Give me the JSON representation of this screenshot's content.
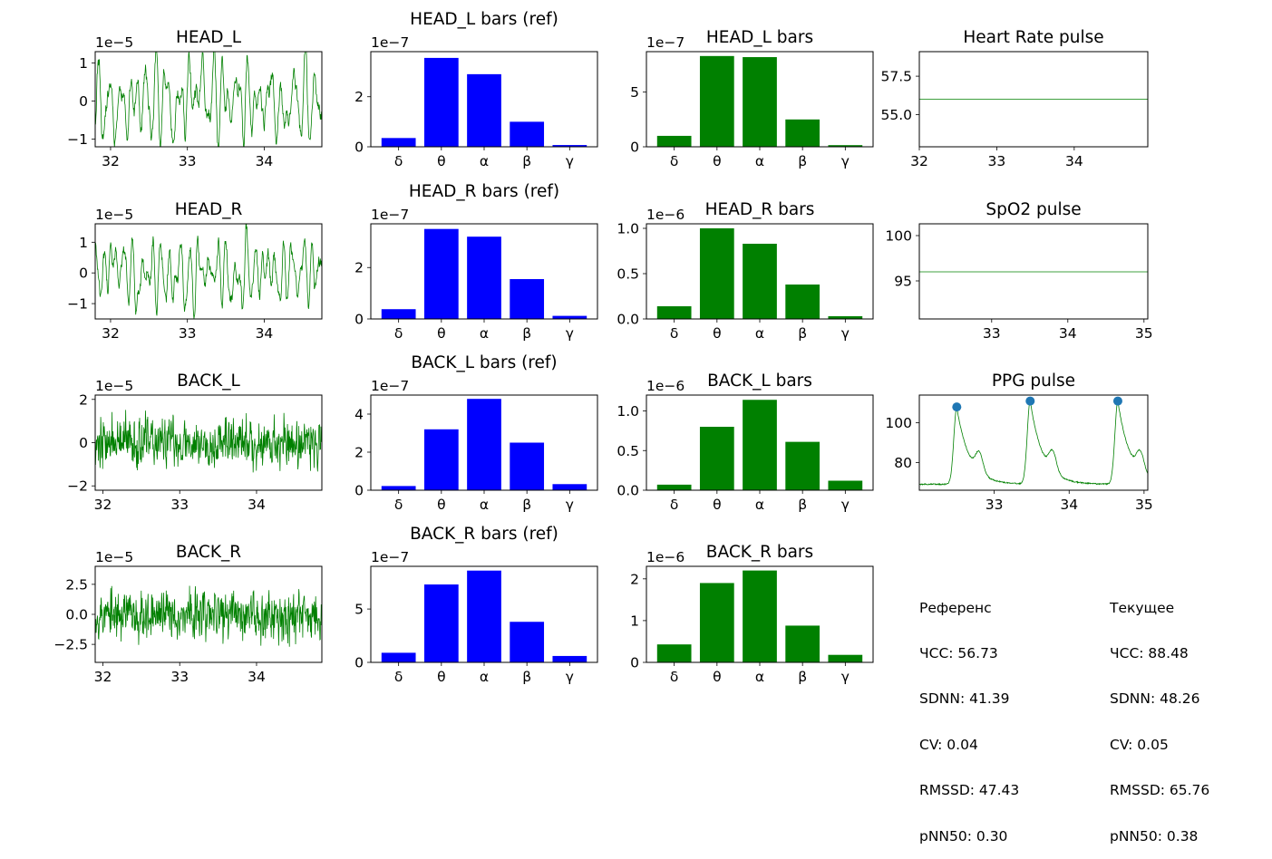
{
  "colors": {
    "signal": "#008000",
    "ref_bar": "#0000ff",
    "cur_bar": "#008000",
    "peak_marker": "#1f77b4",
    "axis": "#000000"
  },
  "chart_data": [
    {
      "id": "ts-head-l",
      "type": "line",
      "title": "HEAD_L",
      "scale_label": "1e−5",
      "xlim": [
        31.8,
        34.75
      ],
      "ylim": [
        -1.2,
        1.3
      ],
      "xticks": [
        32,
        33,
        34
      ],
      "xtick_labels": [
        "32",
        "33",
        "34"
      ],
      "yticks": [
        -1,
        0,
        1
      ],
      "ytick_labels": [
        "−1",
        "0",
        "1"
      ],
      "signal": {
        "kind": "eeg",
        "amp": 0.55,
        "seed": 11,
        "alpha": 0.55,
        "noise": 0.12
      }
    },
    {
      "id": "bars-head-l-ref",
      "type": "bar",
      "title": "HEAD_L bars (ref)",
      "scale_label": "1e−7",
      "categories": [
        "δ",
        "θ",
        "α",
        "β",
        "γ"
      ],
      "values": [
        0.35,
        3.55,
        2.9,
        1.0,
        0.07
      ],
      "ylim": [
        0,
        3.8
      ],
      "yticks": [
        0,
        2
      ],
      "ytick_labels": [
        "0",
        "2"
      ],
      "color_key": "ref_bar"
    },
    {
      "id": "bars-head-l",
      "type": "bar",
      "title": "HEAD_L bars",
      "scale_label": "1e−7",
      "categories": [
        "δ",
        "θ",
        "α",
        "β",
        "γ"
      ],
      "values": [
        1.0,
        8.3,
        8.2,
        2.5,
        0.15
      ],
      "ylim": [
        0,
        8.7
      ],
      "yticks": [
        0,
        5
      ],
      "ytick_labels": [
        "0",
        "5"
      ],
      "color_key": "cur_bar"
    },
    {
      "id": "hr-pulse",
      "type": "line",
      "title": "Heart Rate pulse",
      "scale_label": "",
      "xlim": [
        32,
        34.95
      ],
      "ylim": [
        52.9,
        59.1
      ],
      "xticks": [
        32,
        33,
        34
      ],
      "xtick_labels": [
        "32",
        "33",
        "34"
      ],
      "yticks": [
        55.0,
        57.5
      ],
      "ytick_labels": [
        "55.0",
        "57.5"
      ],
      "signal": {
        "kind": "const",
        "value": 56.0
      }
    },
    {
      "id": "ts-head-r",
      "type": "line",
      "title": "HEAD_R",
      "scale_label": "1e−5",
      "xlim": [
        31.8,
        34.75
      ],
      "ylim": [
        -1.5,
        1.6
      ],
      "xticks": [
        32,
        33,
        34
      ],
      "xtick_labels": [
        "32",
        "33",
        "34"
      ],
      "yticks": [
        -1,
        0,
        1
      ],
      "ytick_labels": [
        "−1",
        "0",
        "1"
      ],
      "signal": {
        "kind": "eeg",
        "amp": 0.62,
        "seed": 23,
        "alpha": 0.5,
        "noise": 0.18
      }
    },
    {
      "id": "bars-head-r-ref",
      "type": "bar",
      "title": "HEAD_R bars (ref)",
      "scale_label": "1e−7",
      "categories": [
        "δ",
        "θ",
        "α",
        "β",
        "γ"
      ],
      "values": [
        0.38,
        3.5,
        3.2,
        1.55,
        0.12
      ],
      "ylim": [
        0,
        3.7
      ],
      "yticks": [
        0,
        2
      ],
      "ytick_labels": [
        "0",
        "2"
      ],
      "color_key": "ref_bar"
    },
    {
      "id": "bars-head-r",
      "type": "bar",
      "title": "HEAD_R bars",
      "scale_label": "1e−6",
      "categories": [
        "δ",
        "θ",
        "α",
        "β",
        "γ"
      ],
      "values": [
        0.14,
        1.0,
        0.83,
        0.38,
        0.03
      ],
      "ylim": [
        0,
        1.05
      ],
      "yticks": [
        0,
        0.5,
        1.0
      ],
      "ytick_labels": [
        "0.0",
        "0.5",
        "1.0"
      ],
      "color_key": "cur_bar"
    },
    {
      "id": "spo2-pulse",
      "type": "line",
      "title": "SpO2 pulse",
      "scale_label": "",
      "xlim": [
        32.05,
        35.05
      ],
      "ylim": [
        90.8,
        101.3
      ],
      "xticks": [
        33,
        34,
        35
      ],
      "xtick_labels": [
        "33",
        "34",
        "35"
      ],
      "yticks": [
        95,
        100
      ],
      "ytick_labels": [
        "95",
        "100"
      ],
      "signal": {
        "kind": "const",
        "value": 96.0
      }
    },
    {
      "id": "ts-back-l",
      "type": "line",
      "title": "BACK_L",
      "scale_label": "1e−5",
      "xlim": [
        31.9,
        34.85
      ],
      "ylim": [
        -2.2,
        2.2
      ],
      "xticks": [
        32,
        33,
        34
      ],
      "xtick_labels": [
        "32",
        "33",
        "34"
      ],
      "yticks": [
        -2,
        0,
        2
      ],
      "ytick_labels": [
        "−2",
        "0",
        "2"
      ],
      "signal": {
        "kind": "noise",
        "amp": 0.7,
        "seed": 37
      }
    },
    {
      "id": "bars-back-l-ref",
      "type": "bar",
      "title": "BACK_L bars (ref)",
      "scale_label": "1e−7",
      "categories": [
        "δ",
        "θ",
        "α",
        "β",
        "γ"
      ],
      "values": [
        0.22,
        3.2,
        4.8,
        2.5,
        0.32
      ],
      "ylim": [
        0,
        5.0
      ],
      "yticks": [
        0,
        2,
        4
      ],
      "ytick_labels": [
        "0",
        "2",
        "4"
      ],
      "color_key": "ref_bar"
    },
    {
      "id": "bars-back-l",
      "type": "bar",
      "title": "BACK_L bars",
      "scale_label": "1e−6",
      "categories": [
        "δ",
        "θ",
        "α",
        "β",
        "γ"
      ],
      "values": [
        0.07,
        0.8,
        1.14,
        0.61,
        0.12
      ],
      "ylim": [
        0,
        1.2
      ],
      "yticks": [
        0,
        0.5,
        1.0
      ],
      "ytick_labels": [
        "0.0",
        "0.5",
        "1.0"
      ],
      "color_key": "cur_bar"
    },
    {
      "id": "ppg-pulse",
      "type": "line",
      "title": "PPG pulse",
      "scale_label": "",
      "xlim": [
        32.0,
        35.05
      ],
      "ylim": [
        66,
        114
      ],
      "xticks": [
        33,
        34,
        35
      ],
      "xtick_labels": [
        "33",
        "34",
        "35"
      ],
      "yticks": [
        80,
        100
      ],
      "ytick_labels": [
        "80",
        "100"
      ],
      "signal": {
        "kind": "ppg",
        "baseline": 69,
        "peaks": [
          [
            32.5,
            108
          ],
          [
            33.48,
            111
          ],
          [
            34.65,
            111
          ]
        ]
      },
      "peak_points": [
        [
          32.5,
          108
        ],
        [
          33.48,
          111
        ],
        [
          34.65,
          111
        ]
      ]
    },
    {
      "id": "ts-back-r",
      "type": "line",
      "title": "BACK_R",
      "scale_label": "1e−5",
      "xlim": [
        31.9,
        34.85
      ],
      "ylim": [
        -4.0,
        4.0
      ],
      "xticks": [
        32,
        33,
        34
      ],
      "xtick_labels": [
        "32",
        "33",
        "34"
      ],
      "yticks": [
        -2.5,
        0,
        2.5
      ],
      "ytick_labels": [
        "−2.5",
        "0.0",
        "2.5"
      ],
      "signal": {
        "kind": "noise",
        "amp": 1.25,
        "seed": 53
      }
    },
    {
      "id": "bars-back-r-ref",
      "type": "bar",
      "title": "BACK_R bars (ref)",
      "scale_label": "1e−7",
      "categories": [
        "δ",
        "θ",
        "α",
        "β",
        "γ"
      ],
      "values": [
        0.9,
        7.3,
        8.6,
        3.8,
        0.6
      ],
      "ylim": [
        0,
        9.0
      ],
      "yticks": [
        0,
        5
      ],
      "ytick_labels": [
        "0",
        "5"
      ],
      "color_key": "ref_bar"
    },
    {
      "id": "bars-back-r",
      "type": "bar",
      "title": "BACK_R bars",
      "scale_label": "1e−6",
      "categories": [
        "δ",
        "θ",
        "α",
        "β",
        "γ"
      ],
      "values": [
        0.43,
        1.9,
        2.2,
        0.88,
        0.18
      ],
      "ylim": [
        0,
        2.3
      ],
      "yticks": [
        0,
        1,
        2
      ],
      "ytick_labels": [
        "0",
        "1",
        "2"
      ],
      "color_key": "cur_bar"
    }
  ],
  "stats": {
    "reference": {
      "header": "Референс",
      "lines": [
        "ЧСС: 56.73",
        "SDNN: 41.39",
        "CV: 0.04",
        "RMSSD: 47.43",
        "pNN50: 0.30"
      ]
    },
    "current": {
      "header": "Текущее",
      "lines": [
        "ЧСС: 88.48",
        "SDNN: 48.26",
        "CV: 0.05",
        "RMSSD: 65.76",
        "pNN50: 0.38"
      ]
    }
  }
}
